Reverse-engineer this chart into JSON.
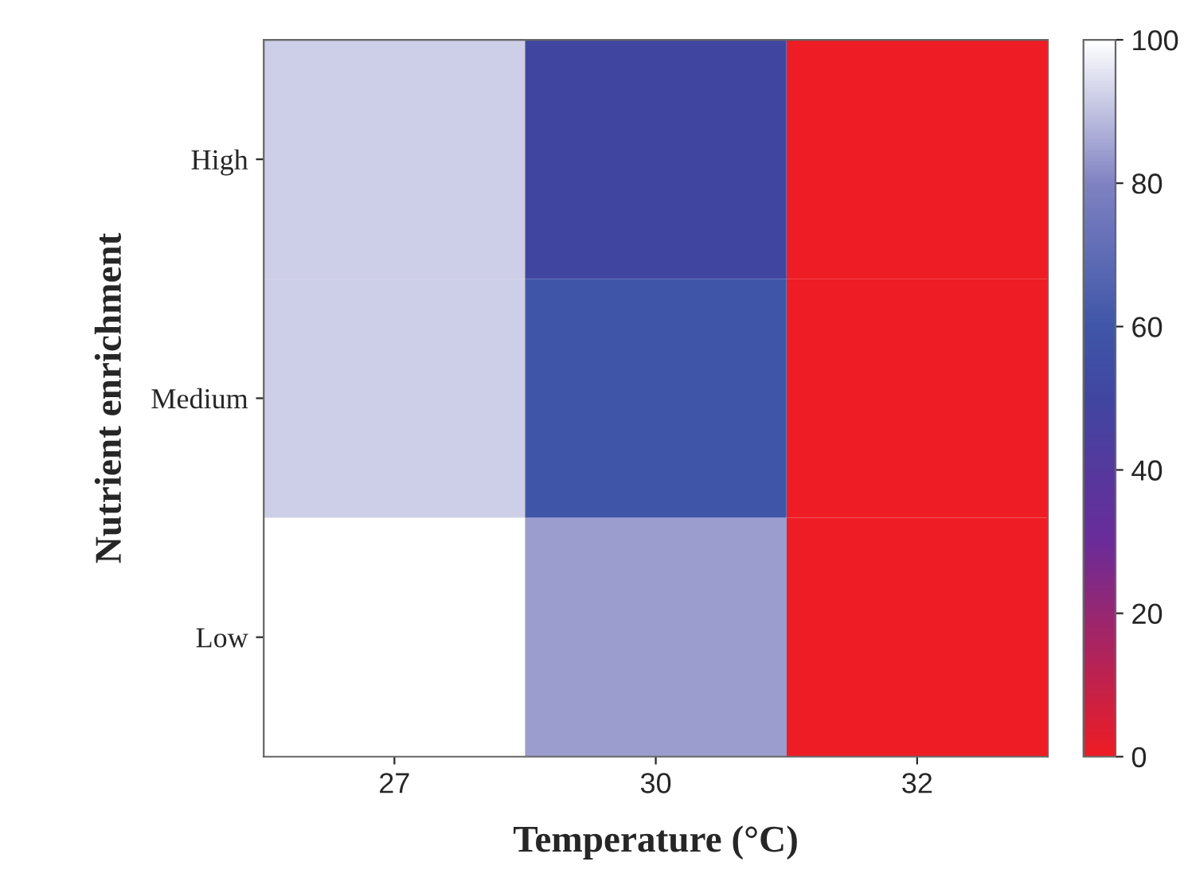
{
  "chart_data": {
    "type": "heatmap",
    "xlabel": "Temperature (°C)",
    "ylabel": "Nutrient enrichment",
    "categories": [
      "27",
      "30",
      "32"
    ],
    "y_categories": [
      "High",
      "Medium",
      "Low"
    ],
    "cells": [
      [
        92,
        50,
        0
      ],
      [
        92,
        60,
        0
      ],
      [
        100,
        84,
        0
      ]
    ],
    "clim": [
      0,
      100
    ],
    "cticks": [
      0,
      20,
      40,
      60,
      80,
      100
    ]
  }
}
